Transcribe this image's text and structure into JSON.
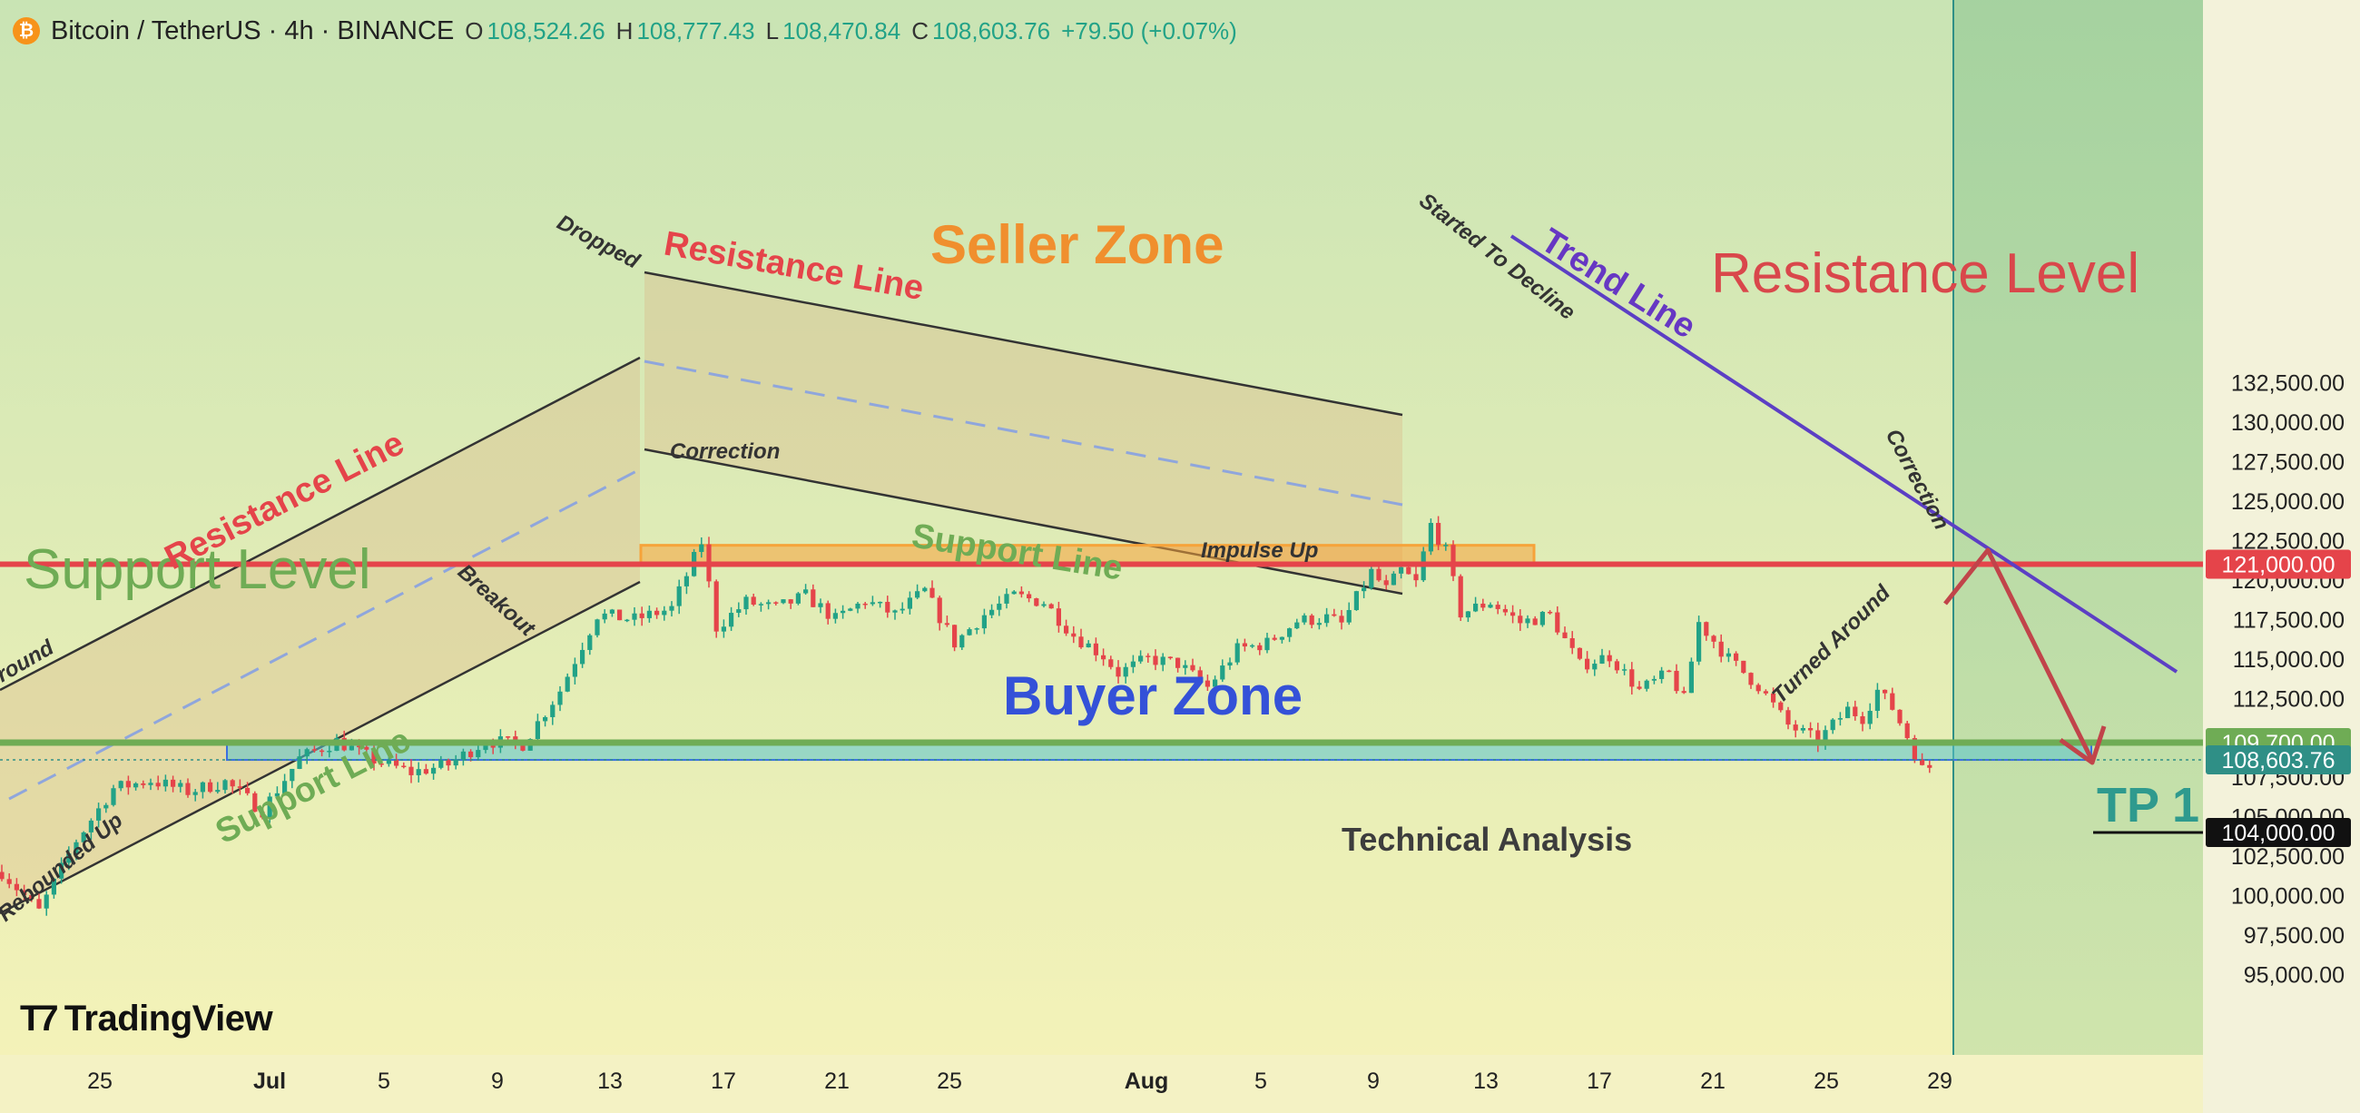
{
  "header": {
    "symbol": "Bitcoin / TetherUS · 4h · BINANCE",
    "open_label": "O",
    "open": "108,524.26",
    "high_label": "H",
    "high": "108,777.43",
    "low_label": "L",
    "low": "108,470.84",
    "close_label": "C",
    "close": "108,603.76",
    "change": "+79.50 (+0.07%)"
  },
  "logo": {
    "name": "TradingView"
  },
  "chart_data": {
    "type": "candlestick",
    "ylim": [
      93000,
      133000
    ],
    "y_ticks": [
      95000,
      97500,
      100000,
      102500,
      105000,
      107500,
      110000,
      112500,
      115000,
      117500,
      120000,
      122500,
      125000,
      127500,
      130000,
      132500
    ],
    "y_tick_labels": [
      "95,000.00",
      "97,500.00",
      "100,000.00",
      "102,500.00",
      "105,000.00",
      "107,500.00",
      "110,000.00",
      "112,500.00",
      "115,000.00",
      "117,500.00",
      "120,000.00",
      "122,500.00",
      "125,000.00",
      "127,500.00",
      "130,000.00",
      "132,500.00"
    ],
    "x_tick_labels": [
      "25",
      "Jul",
      "5",
      "9",
      "13",
      "17",
      "21",
      "25",
      "Aug",
      "5",
      "9",
      "13",
      "17",
      "21",
      "25",
      "29"
    ],
    "price_points": [
      [
        0,
        101500
      ],
      [
        5,
        99000
      ],
      [
        10,
        103500
      ],
      [
        15,
        106800
      ],
      [
        20,
        107300
      ],
      [
        25,
        106600
      ],
      [
        30,
        107200
      ],
      [
        35,
        105400
      ],
      [
        40,
        108700
      ],
      [
        45,
        109800
      ],
      [
        50,
        108600
      ],
      [
        55,
        107800
      ],
      [
        60,
        108300
      ],
      [
        65,
        109800
      ],
      [
        70,
        109600
      ],
      [
        75,
        113000
      ],
      [
        80,
        117800
      ],
      [
        85,
        117500
      ],
      [
        90,
        118200
      ],
      [
        94,
        122400
      ],
      [
        96,
        117000
      ],
      [
        100,
        118600
      ],
      [
        104,
        118200
      ],
      [
        108,
        119000
      ],
      [
        112,
        117500
      ],
      [
        116,
        118700
      ],
      [
        120,
        117800
      ],
      [
        124,
        119300
      ],
      [
        128,
        116000
      ],
      [
        132,
        117800
      ],
      [
        136,
        119000
      ],
      [
        140,
        118600
      ],
      [
        144,
        116500
      ],
      [
        148,
        115200
      ],
      [
        150,
        114100
      ],
      [
        154,
        115000
      ],
      [
        158,
        114700
      ],
      [
        162,
        113200
      ],
      [
        166,
        115600
      ],
      [
        170,
        116000
      ],
      [
        174,
        117400
      ],
      [
        178,
        117600
      ],
      [
        180,
        117200
      ],
      [
        184,
        120500
      ],
      [
        186,
        119400
      ],
      [
        188,
        120600
      ],
      [
        190,
        119800
      ],
      [
        192,
        123500
      ],
      [
        194,
        121800
      ],
      [
        196,
        117900
      ],
      [
        200,
        118600
      ],
      [
        204,
        117300
      ],
      [
        208,
        117800
      ],
      [
        212,
        114600
      ],
      [
        216,
        115200
      ],
      [
        220,
        113000
      ],
      [
        224,
        114100
      ],
      [
        226,
        112400
      ],
      [
        228,
        117300
      ],
      [
        232,
        115000
      ],
      [
        236,
        113300
      ],
      [
        240,
        110800
      ],
      [
        244,
        109800
      ],
      [
        248,
        111800
      ],
      [
        250,
        111300
      ],
      [
        252,
        113000
      ],
      [
        254,
        111900
      ],
      [
        256,
        110100
      ],
      [
        258,
        108000
      ],
      [
        260,
        108300
      ]
    ],
    "levels": [
      {
        "label": "121,000.00",
        "value": 121000,
        "name": "Resistance Level",
        "color": "#e5444a"
      },
      {
        "label": "109,700.00",
        "value": 109700,
        "color": "#6fac55"
      },
      {
        "label": "108,603.76",
        "value": 108603.76,
        "color": "#2f8f86"
      },
      {
        "label": "104,000.00",
        "value": 104000,
        "color": "#111111"
      }
    ],
    "zones": [
      {
        "name": "Seller Zone",
        "from": 121000,
        "to": 122200,
        "color": "#f6a33a"
      },
      {
        "name": "Buyer Zone",
        "from": 108600,
        "to": 109700,
        "color": "#58c4cf"
      }
    ],
    "text_annotations": {
      "seller_zone": "Seller Zone",
      "buyer_zone": "Buyer Zone",
      "resistance_level": "Resistance Level",
      "support_level": "Support Level",
      "resistance_line_left": "Resistance Line",
      "resistance_line_mid": "Resistance Line",
      "support_line_left": "Support Line",
      "support_line_mid": "Support Line",
      "trend_line": "Trend Line",
      "tp1": "TP 1",
      "technical_analysis": "Technical Analysis",
      "dropped": "Dropped",
      "correction_mid": "Correction",
      "impulse_up": "Impulse Up",
      "started_to_decline": "Started To Decline",
      "correction_right": "Correction",
      "turned_around": "Turned Around",
      "breakout": "Breakout",
      "rebounded_up": "Rebounded Up",
      "around_left": "round"
    },
    "colors": {
      "up": "#22a287",
      "down": "#e5444a",
      "bg_top": "#c9e4b4",
      "bg_bottom": "#f6f3b8"
    }
  }
}
